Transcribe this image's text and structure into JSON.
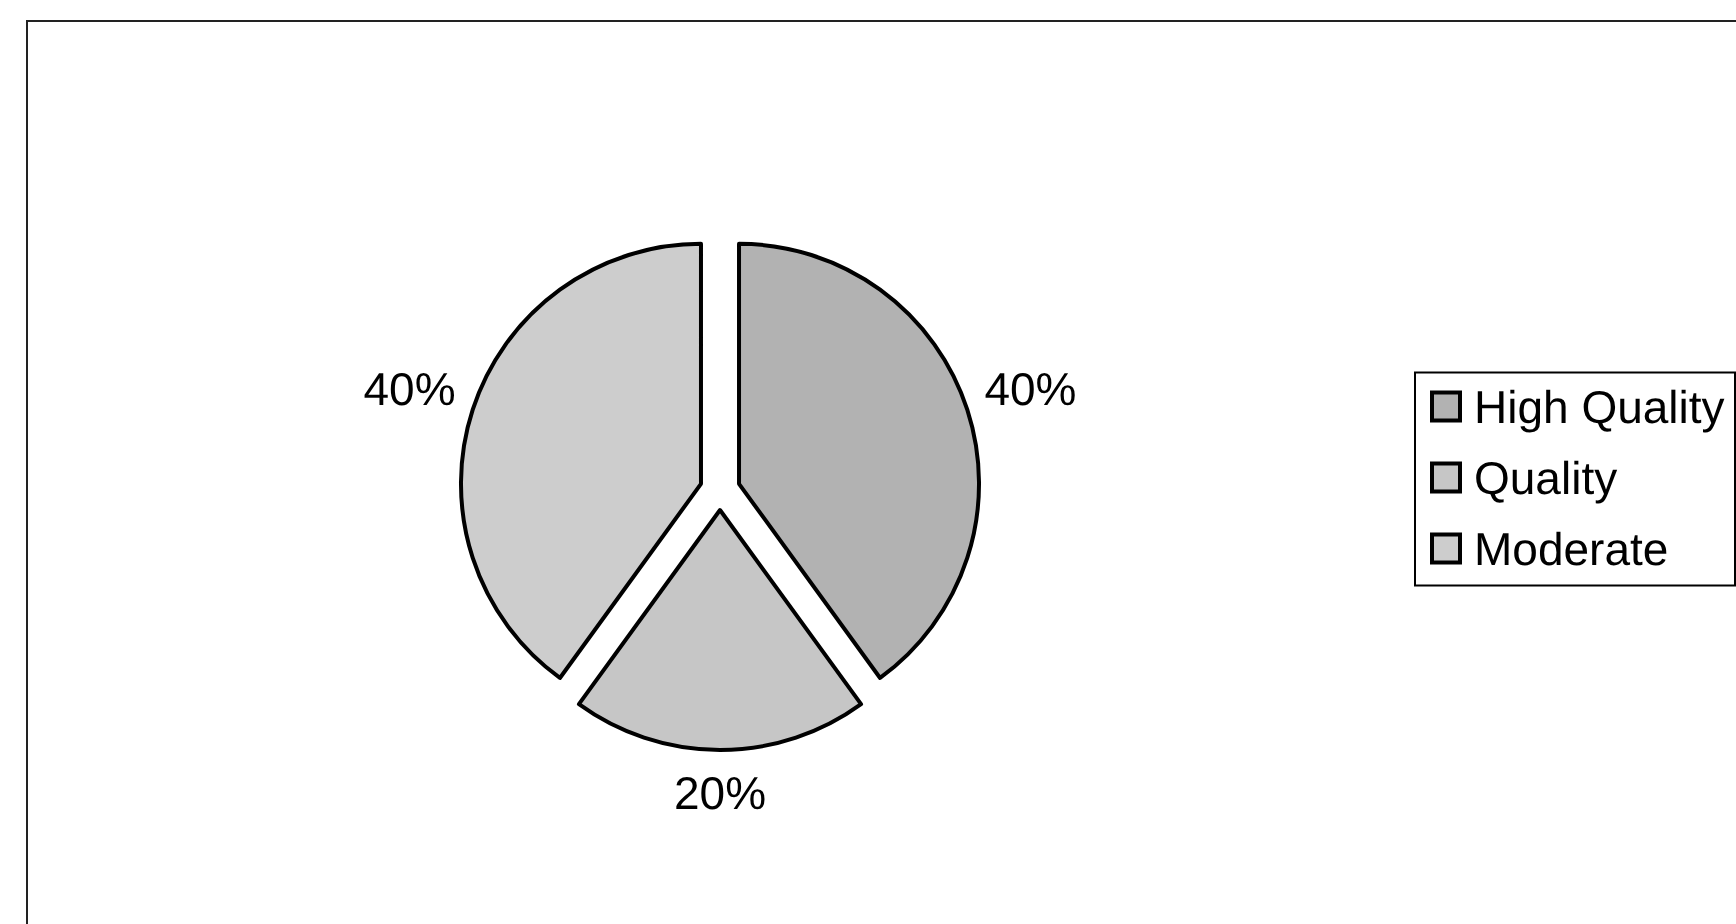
{
  "chart_data": {
    "type": "pie",
    "categories": [
      "High Quality",
      "Quality",
      "Moderate"
    ],
    "values": [
      40,
      20,
      40
    ],
    "colors": [
      "#b2b2b2",
      "#c6c6c6",
      "#cdcdcd"
    ],
    "value_labels": [
      "40%",
      "20%",
      "40%"
    ],
    "legend": "right"
  }
}
